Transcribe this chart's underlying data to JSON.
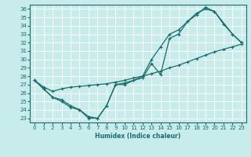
{
  "xlabel": "Humidex (Indice chaleur)",
  "background_color": "#c8ecec",
  "grid_color": "#ffffff",
  "line_color": "#1a6b6b",
  "xlim": [
    -0.5,
    23.5
  ],
  "ylim": [
    22.5,
    36.5
  ],
  "xticks": [
    0,
    1,
    2,
    3,
    4,
    5,
    6,
    7,
    8,
    9,
    10,
    11,
    12,
    13,
    14,
    15,
    16,
    17,
    18,
    19,
    20,
    21,
    22,
    23
  ],
  "yticks": [
    23,
    24,
    25,
    26,
    27,
    28,
    29,
    30,
    31,
    32,
    33,
    34,
    35,
    36
  ],
  "line1_x": [
    0,
    1,
    2,
    3,
    4,
    5,
    6,
    7,
    8,
    9,
    10,
    11,
    12,
    13,
    14,
    15,
    16,
    17,
    18,
    19,
    20,
    21,
    22,
    23
  ],
  "line1_y": [
    27.5,
    26.5,
    25.5,
    25.0,
    24.3,
    24.0,
    23.2,
    23.0,
    24.5,
    27.0,
    27.2,
    27.5,
    28.0,
    30.0,
    31.5,
    33.0,
    33.5,
    34.5,
    35.3,
    36.2,
    35.7,
    34.2,
    33.0,
    32.0
  ],
  "line2_x": [
    0,
    1,
    2,
    3,
    4,
    5,
    6,
    7,
    8,
    9,
    10,
    11,
    12,
    13,
    14,
    15,
    16,
    17,
    18,
    19,
    20,
    22,
    23
  ],
  "line2_y": [
    27.5,
    26.5,
    25.5,
    25.2,
    24.5,
    24.0,
    23.0,
    23.0,
    24.5,
    27.0,
    27.0,
    27.5,
    27.8,
    29.5,
    28.2,
    32.5,
    33.0,
    34.5,
    35.5,
    36.0,
    35.7,
    33.0,
    32.0
  ],
  "line3_x": [
    0,
    1,
    2,
    3,
    4,
    5,
    6,
    7,
    8,
    9,
    10,
    11,
    12,
    13,
    14,
    15,
    16,
    17,
    18,
    19,
    20,
    21,
    22,
    23
  ],
  "line3_y": [
    27.5,
    26.7,
    26.2,
    26.5,
    26.7,
    26.8,
    26.9,
    27.0,
    27.1,
    27.3,
    27.5,
    27.8,
    28.0,
    28.3,
    28.6,
    29.0,
    29.3,
    29.7,
    30.1,
    30.5,
    30.9,
    31.2,
    31.5,
    31.8
  ]
}
